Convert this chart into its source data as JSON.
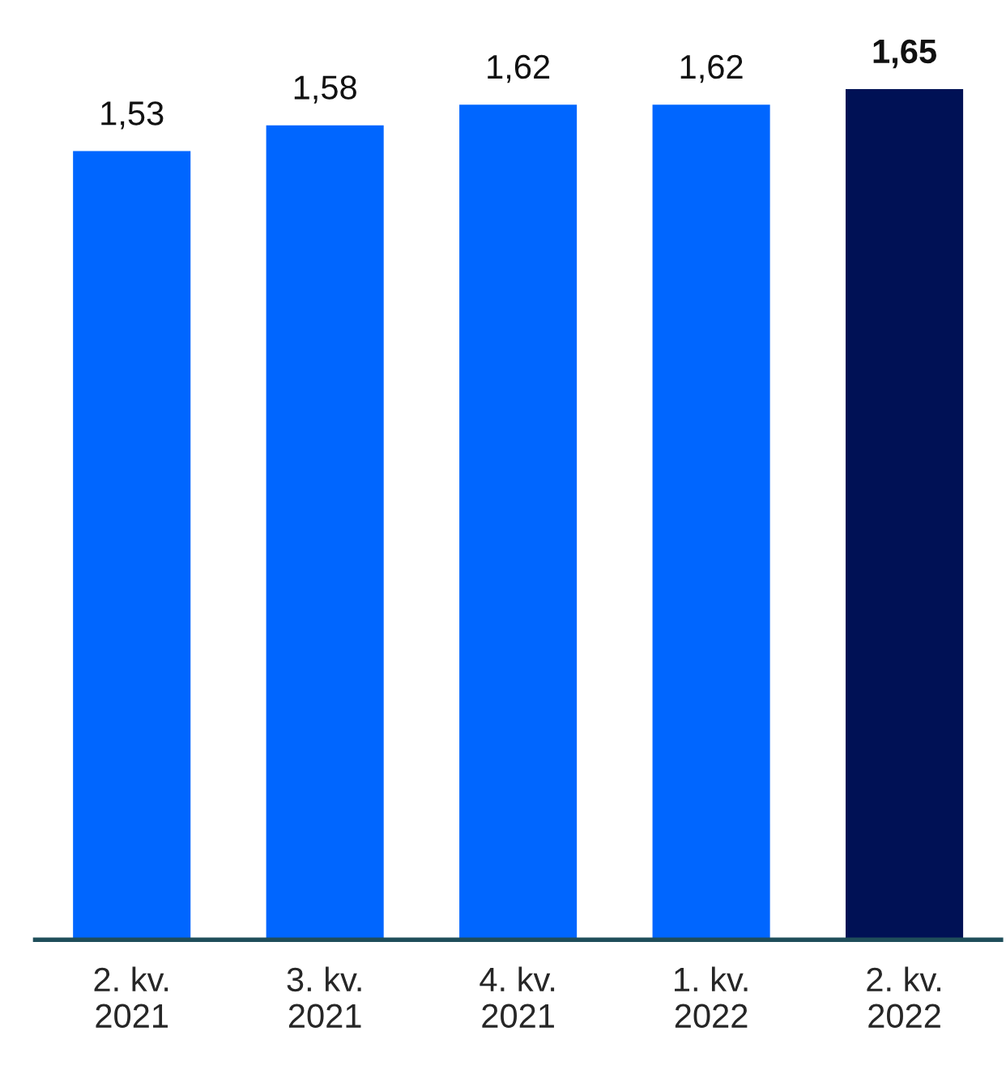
{
  "chart_data": {
    "type": "bar",
    "categories": [
      "2. kv.\n2021",
      "3. kv.\n2021",
      "4. kv.\n2021",
      "1. kv.\n2022",
      "2. kv.\n2022"
    ],
    "values": [
      1.53,
      1.58,
      1.62,
      1.62,
      1.65
    ],
    "colors": [
      "#0066ff",
      "#0066ff",
      "#0066ff",
      "#0066ff",
      "#001155"
    ],
    "value_labels": [
      "1,53",
      "1,58",
      "1,62",
      "1,62",
      "1,65"
    ],
    "tick_labels": "x",
    "grid": false,
    "legend": false
  }
}
